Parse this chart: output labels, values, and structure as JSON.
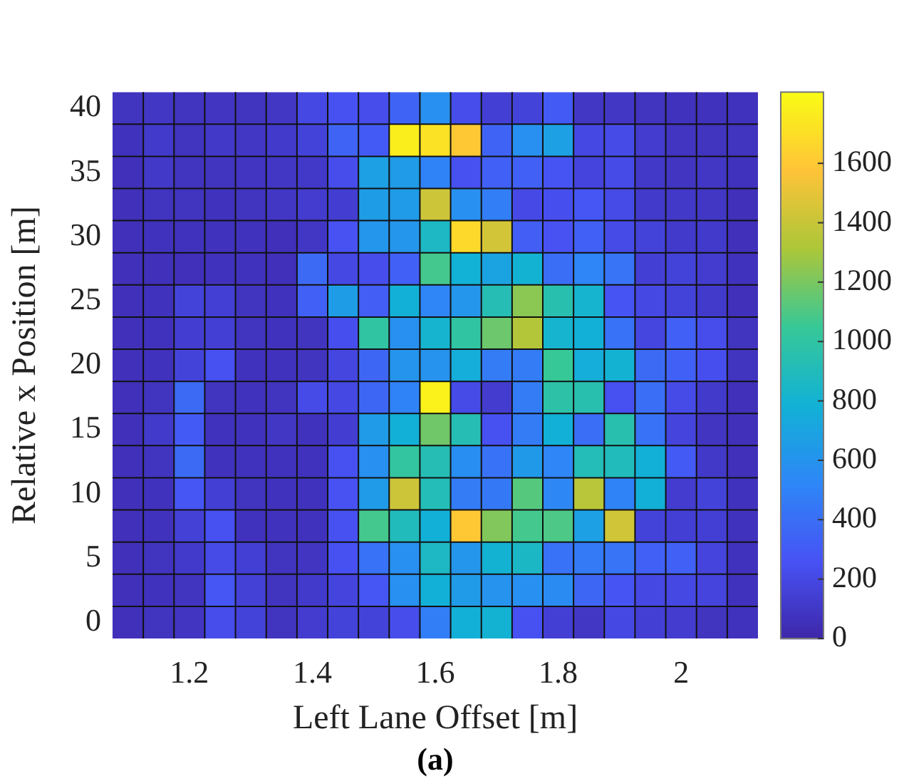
{
  "chart_data": {
    "type": "heatmap",
    "xlabel": "Left Lane Offset [m]",
    "ylabel": "Relative x Position [m]",
    "annotations": [
      "(a)"
    ],
    "categories": [
      null,
      null,
      "1.2",
      null,
      null,
      null,
      "1.4",
      null,
      null,
      null,
      "1.6",
      null,
      null,
      null,
      "1.8",
      null,
      null,
      null,
      "2",
      null,
      null
    ],
    "y_categories": [
      "40",
      null,
      "35",
      null,
      "30",
      null,
      "25",
      null,
      "20",
      null,
      "15",
      null,
      "10",
      null,
      "5",
      null,
      "0"
    ],
    "clim": [
      0,
      1840
    ],
    "cticks": [
      0,
      200,
      400,
      600,
      800,
      1000,
      1200,
      1400,
      1600
    ],
    "grid": false,
    "cells": [
      [
        80,
        100,
        80,
        90,
        80,
        100,
        200,
        250,
        230,
        350,
        580,
        230,
        150,
        170,
        300,
        100,
        100,
        80,
        70,
        70,
        70
      ],
      [
        70,
        120,
        80,
        110,
        100,
        120,
        170,
        350,
        300,
        1780,
        1720,
        1600,
        350,
        580,
        680,
        200,
        220,
        130,
        90,
        80,
        80
      ],
      [
        60,
        110,
        80,
        80,
        90,
        100,
        110,
        230,
        680,
        650,
        500,
        250,
        330,
        330,
        270,
        180,
        220,
        110,
        90,
        100,
        70
      ],
      [
        60,
        80,
        80,
        70,
        80,
        100,
        130,
        140,
        660,
        650,
        1420,
        580,
        480,
        210,
        240,
        280,
        220,
        120,
        110,
        100,
        60
      ],
      [
        60,
        70,
        70,
        70,
        70,
        60,
        100,
        260,
        620,
        620,
        870,
        1680,
        1440,
        320,
        260,
        330,
        220,
        170,
        120,
        120,
        60
      ],
      [
        60,
        60,
        60,
        70,
        70,
        60,
        380,
        200,
        230,
        330,
        1080,
        790,
        700,
        800,
        400,
        520,
        430,
        150,
        170,
        130,
        70
      ],
      [
        60,
        70,
        170,
        150,
        80,
        70,
        330,
        660,
        320,
        780,
        520,
        620,
        930,
        1240,
        950,
        820,
        270,
        200,
        170,
        120,
        60
      ],
      [
        60,
        70,
        140,
        150,
        80,
        70,
        80,
        240,
        1000,
        580,
        820,
        1000,
        1170,
        1340,
        820,
        780,
        420,
        190,
        330,
        230,
        80
      ],
      [
        60,
        70,
        170,
        250,
        70,
        70,
        80,
        190,
        360,
        610,
        600,
        760,
        470,
        470,
        1050,
        760,
        800,
        380,
        330,
        240,
        80
      ],
      [
        60,
        80,
        380,
        80,
        70,
        80,
        220,
        200,
        360,
        500,
        1800,
        220,
        130,
        470,
        980,
        950,
        250,
        400,
        220,
        120,
        60
      ],
      [
        60,
        120,
        300,
        70,
        70,
        100,
        70,
        140,
        650,
        780,
        1180,
        930,
        250,
        470,
        780,
        400,
        950,
        420,
        180,
        90,
        60
      ],
      [
        60,
        80,
        380,
        70,
        70,
        70,
        70,
        250,
        580,
        1020,
        930,
        570,
        420,
        640,
        520,
        920,
        900,
        780,
        300,
        110,
        60
      ],
      [
        60,
        70,
        280,
        150,
        80,
        70,
        70,
        260,
        650,
        1420,
        920,
        470,
        450,
        1120,
        530,
        1360,
        500,
        780,
        130,
        170,
        70
      ],
      [
        60,
        70,
        160,
        250,
        70,
        70,
        70,
        250,
        1080,
        900,
        780,
        1600,
        1220,
        1080,
        1100,
        680,
        1430,
        170,
        150,
        150,
        70
      ],
      [
        60,
        80,
        120,
        220,
        150,
        80,
        90,
        250,
        420,
        580,
        870,
        620,
        800,
        860,
        420,
        460,
        430,
        330,
        330,
        180,
        70
      ],
      [
        60,
        70,
        80,
        280,
        160,
        80,
        120,
        180,
        280,
        580,
        780,
        650,
        600,
        580,
        560,
        360,
        270,
        200,
        200,
        180,
        70
      ],
      [
        60,
        80,
        90,
        230,
        170,
        80,
        130,
        170,
        170,
        230,
        480,
        780,
        800,
        250,
        150,
        100,
        200,
        150,
        130,
        80,
        70
      ]
    ]
  }
}
